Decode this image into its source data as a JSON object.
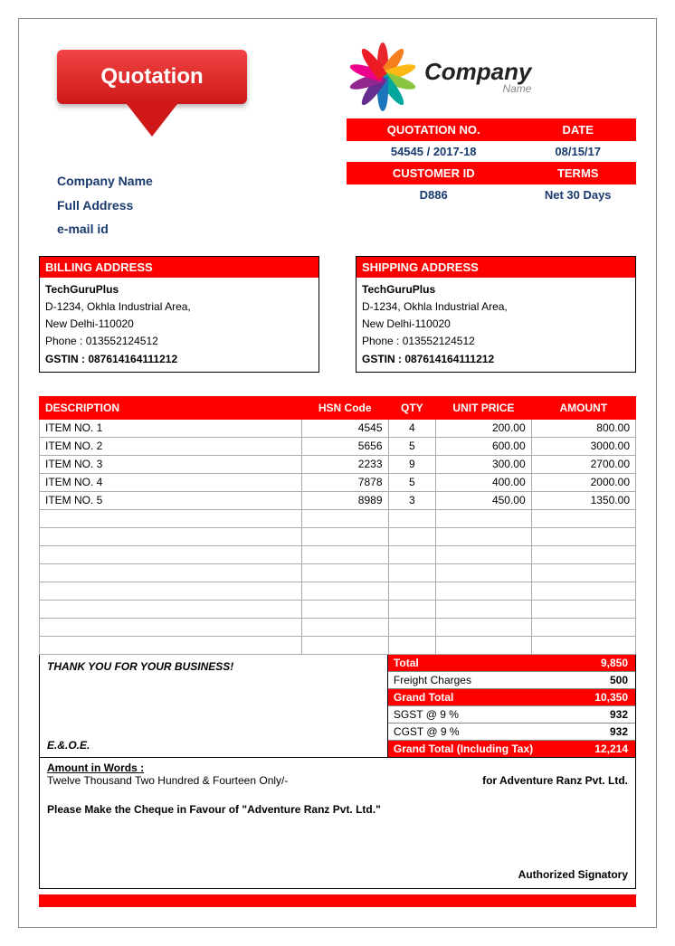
{
  "badge": {
    "label": "Quotation"
  },
  "logo": {
    "company": "Company",
    "sub": "Name",
    "petal_colors": [
      "#e8262c",
      "#f57f1f",
      "#fdb813",
      "#8bc53f",
      "#00a79d",
      "#1b75bb",
      "#652d90",
      "#92278f",
      "#ec008c",
      "#ed1c24"
    ]
  },
  "quote_info": {
    "headers1": [
      "QUOTATION NO.",
      "DATE"
    ],
    "values1": [
      "54545 / 2017-18",
      "08/15/17"
    ],
    "headers2": [
      "CUSTOMER ID",
      "TERMS"
    ],
    "values2": [
      "D886",
      "Net 30 Days"
    ]
  },
  "company": {
    "name": "Company Name",
    "address": "Full Address",
    "email": "e-mail id"
  },
  "billing": {
    "title": "BILLING ADDRESS",
    "name": "TechGuruPlus",
    "line1": "D-1234, Okhla Industrial Area,",
    "line2": "New Delhi-110020",
    "phone": "Phone : 013552124512",
    "gstin": "GSTIN : 087614164111212"
  },
  "shipping": {
    "title": "SHIPPING ADDRESS",
    "name": "TechGuruPlus",
    "line1": "D-1234, Okhla Industrial Area,",
    "line2": "New Delhi-110020",
    "phone": "Phone : 013552124512",
    "gstin": "GSTIN : 087614164111212"
  },
  "table": {
    "headers": [
      "DESCRIPTION",
      "HSN Code",
      "QTY",
      "UNIT PRICE",
      "AMOUNT"
    ],
    "rows": [
      [
        "ITEM NO. 1",
        "4545",
        "4",
        "200.00",
        "800.00"
      ],
      [
        "ITEM NO. 2",
        "5656",
        "5",
        "600.00",
        "3000.00"
      ],
      [
        "ITEM NO. 3",
        "2233",
        "9",
        "300.00",
        "2700.00"
      ],
      [
        "ITEM NO. 4",
        "7878",
        "5",
        "400.00",
        "2000.00"
      ],
      [
        "ITEM NO. 5",
        "8989",
        "3",
        "450.00",
        "1350.00"
      ]
    ],
    "empty_rows": 8,
    "col_widths": [
      "44%",
      "14.5%",
      "8%",
      "16%",
      "17.5%"
    ]
  },
  "bottom": {
    "thank": "THANK YOU FOR YOUR BUSINESS!",
    "eoe": "E.&.O.E."
  },
  "totals": [
    {
      "label": "Total",
      "value": "9,850",
      "red": true
    },
    {
      "label": "Freight Charges",
      "value": "500",
      "red": false
    },
    {
      "label": "Grand Total",
      "value": "10,350",
      "red": true
    },
    {
      "label": "SGST @ 9 %",
      "value": "932",
      "red": false
    },
    {
      "label": "CGST @ 9 %",
      "value": "932",
      "red": false
    },
    {
      "label": "Grand Total (Including Tax)",
      "value": "12,214",
      "red": true
    }
  ],
  "footer": {
    "amt_words_label": "Amount in Words :",
    "amt_words": "Twelve Thousand Two Hundred & Fourteen Only/-",
    "for_company": "for Adventure Ranz Pvt. Ltd.",
    "cheque": "Please Make the Cheque in Favour of \"Adventure Ranz Pvt. Ltd.\"",
    "signatory": "Authorized Signatory"
  },
  "colors": {
    "red": "#ff0000",
    "navy": "#1a3a6e"
  }
}
